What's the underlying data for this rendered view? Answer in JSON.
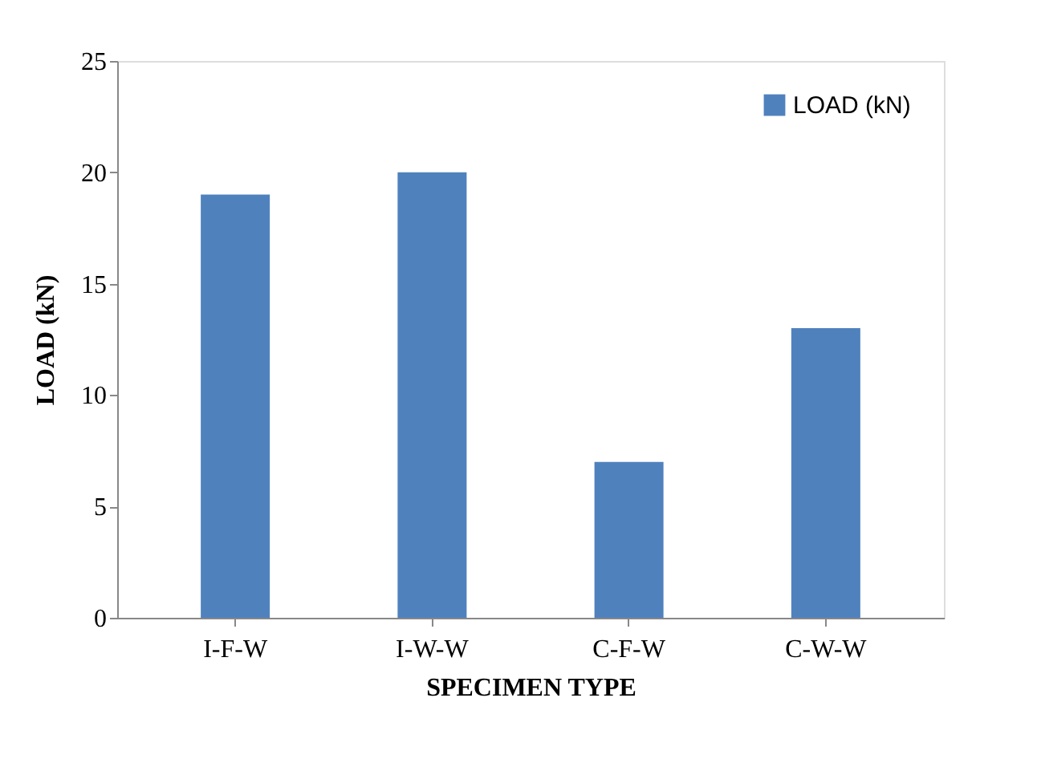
{
  "chart_data": {
    "type": "bar",
    "xlabel": "SPECIMEN TYPE",
    "ylabel": "LOAD (kN)",
    "categories": [
      "I-F-W",
      "I-W-W",
      "C-F-W",
      "C-W-W"
    ],
    "series": [
      {
        "name": "LOAD (kN)",
        "color": "#4f81bd",
        "values": [
          19,
          20,
          7,
          13
        ]
      }
    ],
    "ylim": [
      0,
      25
    ],
    "yticks": [
      0,
      5,
      10,
      15,
      20,
      25
    ],
    "grid": false,
    "legend": "top right"
  }
}
